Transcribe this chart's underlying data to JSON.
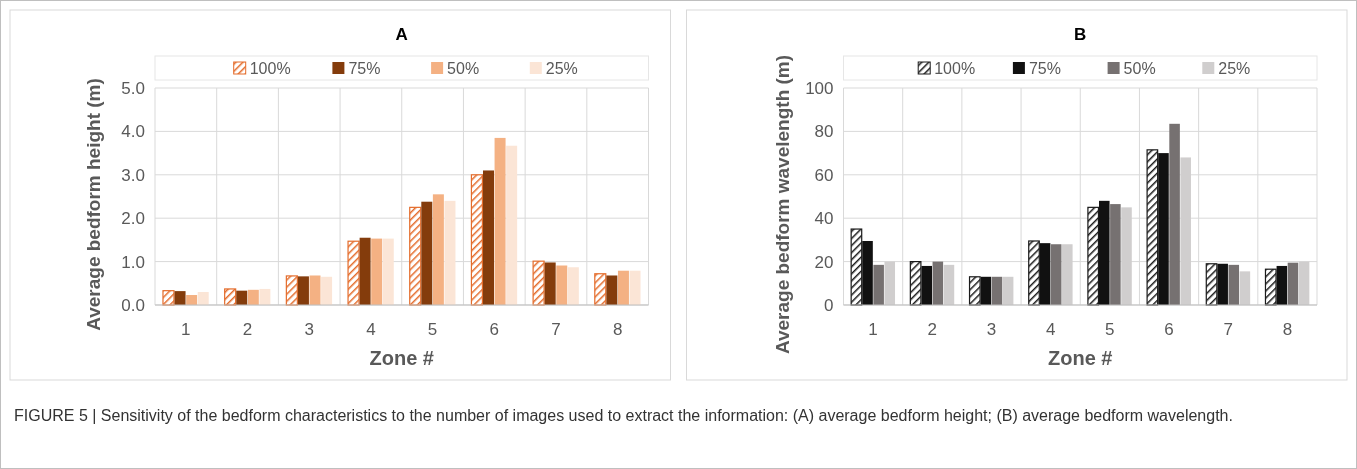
{
  "chart_data": [
    {
      "type": "bar",
      "title": "A",
      "xlabel": "Zone #",
      "ylabel": "Average bedform height (m)",
      "categories": [
        "1",
        "2",
        "3",
        "4",
        "5",
        "6",
        "7",
        "8"
      ],
      "ylim": [
        0,
        5
      ],
      "yticks": [
        {
          "value": 0,
          "label": "0.0"
        },
        {
          "value": 1,
          "label": "1.0"
        },
        {
          "value": 2,
          "label": "2.0"
        },
        {
          "value": 3,
          "label": "3.0"
        },
        {
          "value": 4,
          "label": "4.0"
        },
        {
          "value": 5,
          "label": "5.0"
        }
      ],
      "grid": true,
      "legend": "top",
      "series": [
        {
          "name": "100%",
          "color": "#e46c2b",
          "values": [
            0.33,
            0.37,
            0.67,
            1.47,
            2.25,
            3.0,
            1.01,
            0.72
          ]
        },
        {
          "name": "75%",
          "color": "#843c0c",
          "values": [
            0.32,
            0.33,
            0.66,
            1.55,
            2.38,
            3.1,
            0.98,
            0.68
          ]
        },
        {
          "name": "50%",
          "color": "#f4b183",
          "values": [
            0.23,
            0.35,
            0.68,
            1.53,
            2.55,
            3.85,
            0.91,
            0.79
          ]
        },
        {
          "name": "25%",
          "color": "#fbe5d6",
          "values": [
            0.3,
            0.37,
            0.65,
            1.53,
            2.4,
            3.67,
            0.87,
            0.79
          ]
        }
      ],
      "annotations": [
        "FIGURE 5 | Sensitivity of the bedform characteristics to the number of images used to extract the information: (A) average bedform height; (B) average bedform wavelength."
      ]
    },
    {
      "type": "bar",
      "title": "B",
      "xlabel": "Zone #",
      "ylabel": "Average bedform wavelength (m)",
      "categories": [
        "1",
        "2",
        "3",
        "4",
        "5",
        "6",
        "7",
        "8"
      ],
      "ylim": [
        0,
        100
      ],
      "yticks": [
        0,
        20,
        40,
        60,
        80,
        100
      ],
      "grid": true,
      "legend": "top",
      "series": [
        {
          "name": "100%",
          "color": "#1a1a1a",
          "values": [
            35,
            20,
            13,
            29.5,
            45,
            71.5,
            19,
            16.5
          ]
        },
        {
          "name": "75%",
          "color": "#111111",
          "values": [
            29.5,
            18,
            13,
            28.5,
            48,
            70,
            19,
            18
          ]
        },
        {
          "name": "50%",
          "color": "#767171",
          "values": [
            18.5,
            20,
            13,
            28,
            46.5,
            83.5,
            18.5,
            19.5
          ]
        },
        {
          "name": "25%",
          "color": "#d0cece",
          "values": [
            20,
            18.5,
            13,
            28,
            45,
            68,
            15.5,
            20
          ]
        }
      ]
    }
  ]
}
